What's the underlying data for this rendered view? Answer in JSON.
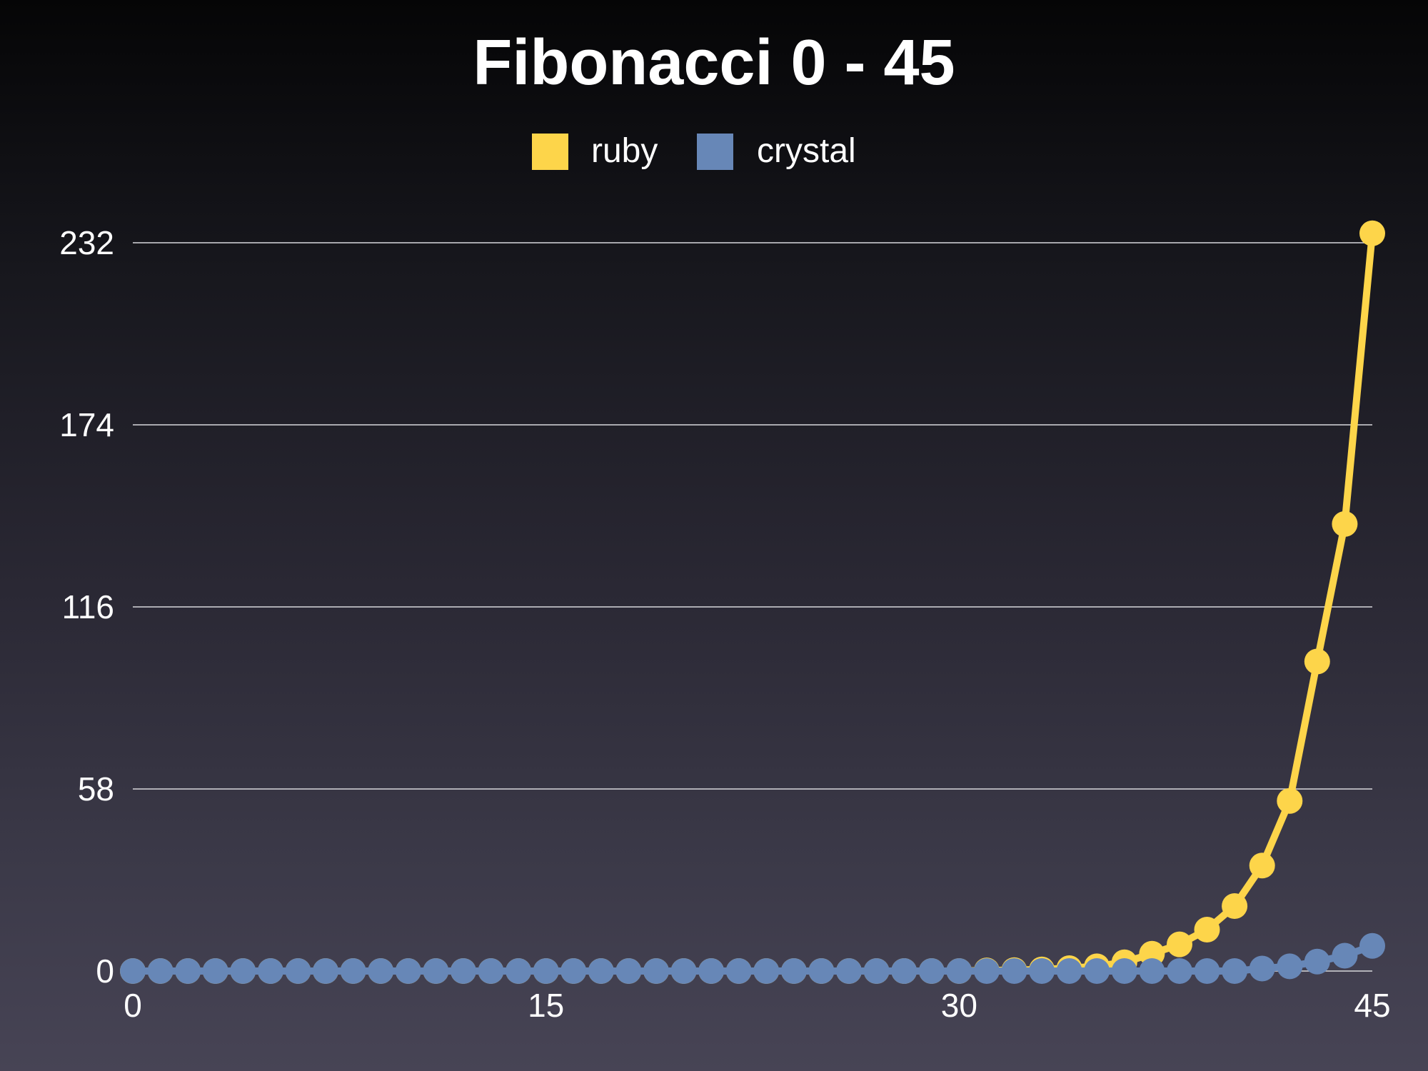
{
  "chart_data": {
    "type": "line",
    "title": "Fibonacci 0 - 45",
    "xlabel": "",
    "ylabel": "",
    "xlim": [
      0,
      45
    ],
    "ylim": [
      0,
      232
    ],
    "x_ticks": [
      "0",
      "15",
      "30",
      "45"
    ],
    "y_ticks": [
      "0",
      "58",
      "116",
      "174",
      "232"
    ],
    "grid": "horizontal",
    "legend_position": "top-center",
    "x": [
      0,
      1,
      2,
      3,
      4,
      5,
      6,
      7,
      8,
      9,
      10,
      11,
      12,
      13,
      14,
      15,
      16,
      17,
      18,
      19,
      20,
      21,
      22,
      23,
      24,
      25,
      26,
      27,
      28,
      29,
      30,
      31,
      32,
      33,
      34,
      35,
      36,
      37,
      38,
      39,
      40,
      41,
      42,
      43,
      44,
      45
    ],
    "series": [
      {
        "name": "ruby",
        "color": "#fdd54a",
        "values": [
          0,
          0,
          0,
          0,
          0,
          0,
          0,
          0,
          0,
          0,
          0,
          0,
          0,
          0,
          0,
          0,
          0,
          0,
          0,
          0,
          0,
          0,
          0,
          0,
          0,
          0,
          0,
          0,
          0,
          0,
          0,
          0.2,
          0.3,
          0.5,
          0.9,
          1.5,
          2.8,
          5.5,
          8.5,
          13.2,
          20.7,
          33.6,
          54.2,
          98.6,
          142.4,
          235
        ]
      },
      {
        "name": "crystal",
        "color": "#6787b7",
        "values": [
          0,
          0,
          0,
          0,
          0,
          0,
          0,
          0,
          0,
          0,
          0,
          0,
          0,
          0,
          0,
          0,
          0,
          0,
          0,
          0,
          0,
          0,
          0,
          0,
          0,
          0,
          0,
          0,
          0,
          0,
          0,
          0,
          0,
          0,
          0,
          0,
          0,
          0,
          0,
          0,
          0,
          0.8,
          1.5,
          3,
          4.9,
          8
        ]
      }
    ]
  }
}
